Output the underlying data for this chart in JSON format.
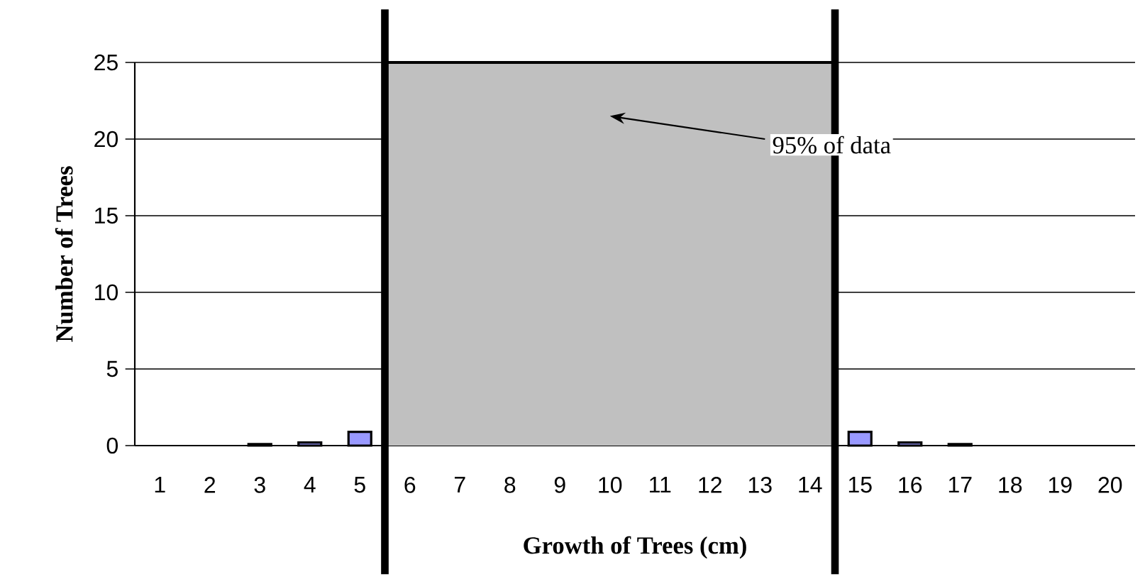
{
  "chart_data": {
    "type": "bar",
    "xlabel": "Growth of Trees (cm)",
    "ylabel": "Number of Trees",
    "x": [
      1,
      2,
      3,
      4,
      5,
      6,
      7,
      8,
      9,
      10,
      11,
      12,
      13,
      14,
      15,
      16,
      17,
      18,
      19,
      20
    ],
    "values": [
      0,
      0,
      0.1,
      0.2,
      0.9,
      null,
      null,
      null,
      null,
      null,
      null,
      null,
      null,
      null,
      0.9,
      0.2,
      0.1,
      0,
      0,
      0
    ],
    "color": "#9999ff",
    "xlim": [
      0.5,
      20.5
    ],
    "xticks": [
      1,
      2,
      3,
      4,
      5,
      6,
      7,
      8,
      9,
      10,
      11,
      12,
      13,
      14,
      15,
      16,
      17,
      18,
      19,
      20
    ],
    "ylim": [
      0,
      25
    ],
    "yticks": [
      0,
      5,
      10,
      15,
      20,
      25
    ],
    "grid": "y",
    "bands": [
      {
        "axis": "x",
        "from": 5.5,
        "to": 14.5,
        "color": "#c0c0c0"
      }
    ],
    "ref_lines": [
      {
        "axis": "x",
        "value": 5.5,
        "color": "#000000"
      },
      {
        "axis": "x",
        "value": 14.5,
        "color": "#000000"
      }
    ],
    "annotations": [
      "95% of data"
    ]
  }
}
